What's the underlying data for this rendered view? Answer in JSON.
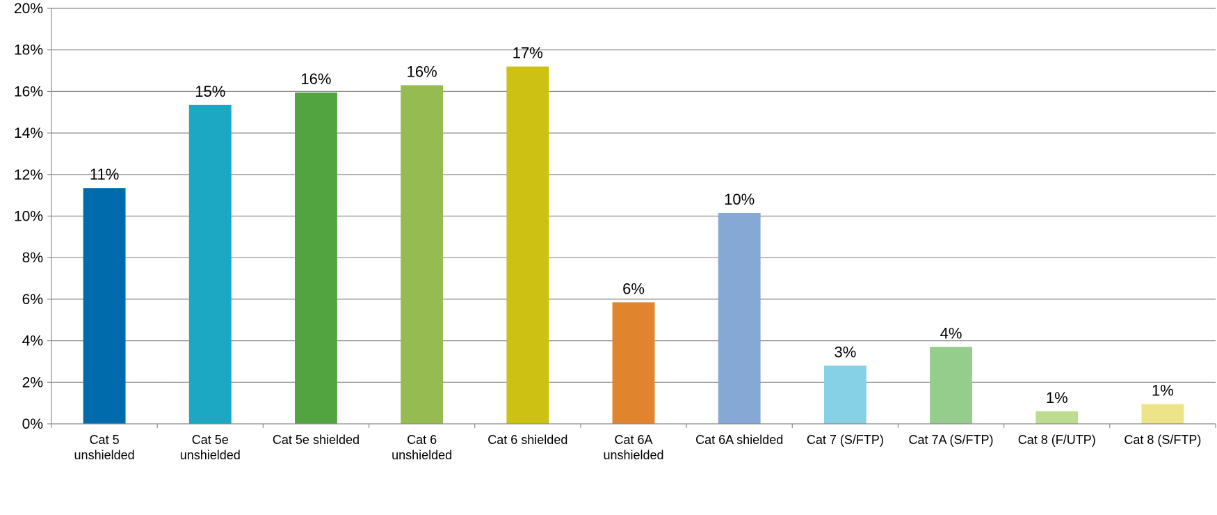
{
  "chart_data": {
    "type": "bar",
    "title": "",
    "xlabel": "",
    "ylabel": "",
    "ylim": [
      0,
      20
    ],
    "y_ticks": [
      0,
      2,
      4,
      6,
      8,
      10,
      12,
      14,
      16,
      18,
      20
    ],
    "y_tick_labels": [
      "0%",
      "2%",
      "4%",
      "6%",
      "8%",
      "10%",
      "12%",
      "14%",
      "16%",
      "18%",
      "20%"
    ],
    "grid": true,
    "legend": "none",
    "categories": [
      [
        "Cat 5",
        "unshielded"
      ],
      [
        "Cat 5e",
        "unshielded"
      ],
      [
        "Cat 5e shielded"
      ],
      [
        "Cat 6",
        "unshielded"
      ],
      [
        "Cat 6 shielded"
      ],
      [
        "Cat 6A",
        "unshielded"
      ],
      [
        "Cat 6A shielded"
      ],
      [
        "Cat 7 (S/FTP)"
      ],
      [
        "Cat 7A (S/FTP)"
      ],
      [
        "Cat 8 (F/UTP)"
      ],
      [
        "Cat 8 (S/FTP)"
      ]
    ],
    "values": [
      11.35,
      15.35,
      15.95,
      16.3,
      17.2,
      5.85,
      10.15,
      2.8,
      3.7,
      0.6,
      0.95
    ],
    "data_labels": [
      "11%",
      "15%",
      "16%",
      "16%",
      "17%",
      "6%",
      "10%",
      "3%",
      "4%",
      "1%",
      "1%"
    ],
    "colors": [
      "#006bac",
      "#1ca8c3",
      "#52a441",
      "#95bb51",
      "#cdc214",
      "#e0852d",
      "#86a8d4",
      "#87d1e6",
      "#94cd8c",
      "#bcdc8f",
      "#ede48a"
    ]
  }
}
